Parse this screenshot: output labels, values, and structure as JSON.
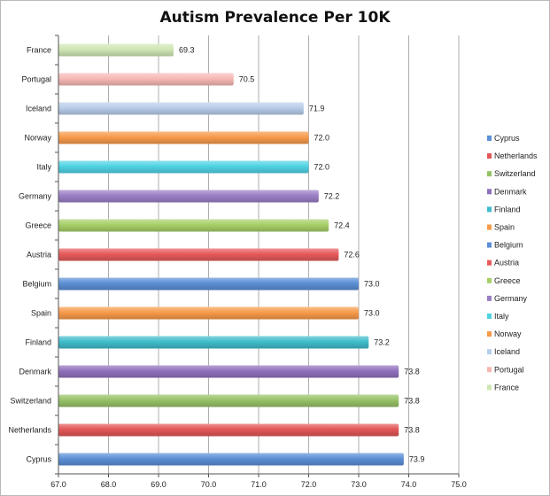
{
  "chart_data": {
    "type": "bar",
    "orientation": "horizontal",
    "title": "Autism Prevalence Per 10K",
    "xlabel": "",
    "ylabel": "",
    "xlim": [
      67.0,
      75.0
    ],
    "xticks": [
      "67.0",
      "68.0",
      "69.0",
      "70.0",
      "71.0",
      "72.0",
      "73.0",
      "74.0",
      "75.0"
    ],
    "grid": "vertical",
    "legend_position": "right",
    "categories": [
      "France",
      "Portugal",
      "Iceland",
      "Norway",
      "Italy",
      "Germany",
      "Greece",
      "Austria",
      "Belgium",
      "Spain",
      "Finland",
      "Denmark",
      "Switzerland",
      "Netherlands",
      "Cyprus"
    ],
    "values": [
      69.3,
      70.5,
      71.9,
      72.0,
      72.0,
      72.2,
      72.4,
      72.6,
      73.0,
      73.0,
      73.2,
      73.8,
      73.8,
      73.8,
      73.9
    ],
    "value_labels": [
      "69.3",
      "70.5",
      "71.9",
      "72.0",
      "72.0",
      "72.2",
      "72.4",
      "72.6",
      "73.0",
      "73.0",
      "73.2",
      "73.8",
      "73.8",
      "73.8",
      "73.9"
    ],
    "colors": [
      "#cfe6b4",
      "#f6b8b5",
      "#b8cdea",
      "#f79a4a",
      "#4fd2e4",
      "#9b7fc6",
      "#a6cf68",
      "#e65a5a",
      "#5b8fd6",
      "#f79a4a",
      "#3fbccb",
      "#9070bd",
      "#96c266",
      "#e25656",
      "#5b8fd6"
    ],
    "legend": [
      {
        "name": "Cyprus",
        "color": "#5b8fd6"
      },
      {
        "name": "Netherlands",
        "color": "#e25656"
      },
      {
        "name": "Switzerland",
        "color": "#96c266"
      },
      {
        "name": "Denmark",
        "color": "#9070bd"
      },
      {
        "name": "Finland",
        "color": "#3fbccb"
      },
      {
        "name": "Spain",
        "color": "#f79a4a"
      },
      {
        "name": "Belgium",
        "color": "#5b8fd6"
      },
      {
        "name": "Austria",
        "color": "#e65a5a"
      },
      {
        "name": "Greece",
        "color": "#a6cf68"
      },
      {
        "name": "Germany",
        "color": "#9b7fc6"
      },
      {
        "name": "Italy",
        "color": "#4fd2e4"
      },
      {
        "name": "Norway",
        "color": "#f79a4a"
      },
      {
        "name": "Iceland",
        "color": "#b8cdea"
      },
      {
        "name": "Portugal",
        "color": "#f6b8b5"
      },
      {
        "name": "France",
        "color": "#cfe6b4"
      }
    ]
  }
}
